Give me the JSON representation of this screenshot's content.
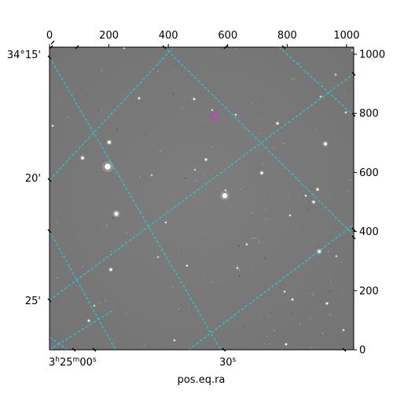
{
  "figure": {
    "xlabel": "pos.eq.ra",
    "colors": {
      "grid": "#00e5e5",
      "marker": "#d633d6",
      "sky": "#7a7a7a",
      "frame": "#000000"
    }
  },
  "pixel_axes": {
    "top_ticks": [
      "0",
      "200",
      "400",
      "600",
      "800",
      "1000"
    ],
    "right_ticks": [
      "0",
      "200",
      "400",
      "600",
      "800",
      "1000"
    ]
  },
  "world_axes": {
    "dec_ticks": [
      "34°15'",
      "20'",
      "25'"
    ],
    "ra_ticks": [
      {
        "h": "3",
        "hsup": "h",
        "m": "25",
        "msup": "m",
        "s": "00",
        "ssup": "s"
      },
      {
        "s": "30",
        "ssup": "s"
      }
    ]
  },
  "chart_data": {
    "type": "scatter",
    "xlabel": "pos.eq.ra",
    "xlim": [
      0,
      1024
    ],
    "ylim": [
      0,
      1024
    ],
    "grid": true,
    "marker": {
      "x": 555,
      "y": 790
    }
  }
}
